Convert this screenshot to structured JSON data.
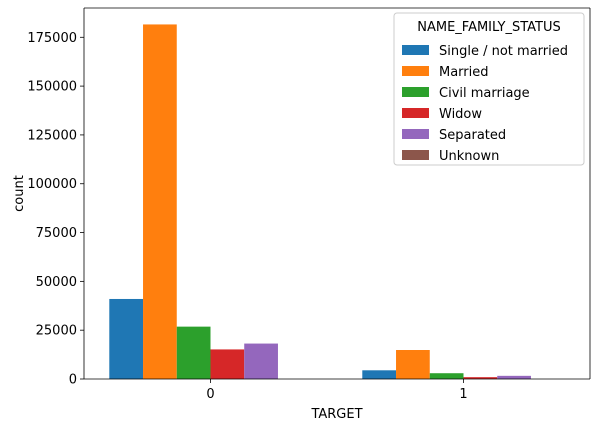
{
  "chart_data": {
    "type": "bar",
    "categories": [
      "0",
      "1"
    ],
    "xlabel": "TARGET",
    "ylabel": "count",
    "ylim": [
      0,
      190000
    ],
    "yticks": [
      0,
      25000,
      50000,
      75000,
      100000,
      125000,
      150000,
      175000
    ],
    "grid": false,
    "legend": {
      "title": "NAME_FAMILY_STATUS",
      "position": "top-right"
    },
    "series": [
      {
        "name": "Single / not married",
        "color": "#1f77b4",
        "values": [
          40987,
          4457
        ]
      },
      {
        "name": "Married",
        "color": "#ff7f0e",
        "values": [
          181582,
          14850
        ]
      },
      {
        "name": "Civil marriage",
        "color": "#2ca02c",
        "values": [
          26814,
          2961
        ]
      },
      {
        "name": "Widow",
        "color": "#d62728",
        "values": [
          15151,
          937
        ]
      },
      {
        "name": "Separated",
        "color": "#9467bd",
        "values": [
          18150,
          1620
        ]
      },
      {
        "name": "Unknown",
        "color": "#8c564b",
        "values": [
          2,
          0
        ]
      }
    ]
  }
}
